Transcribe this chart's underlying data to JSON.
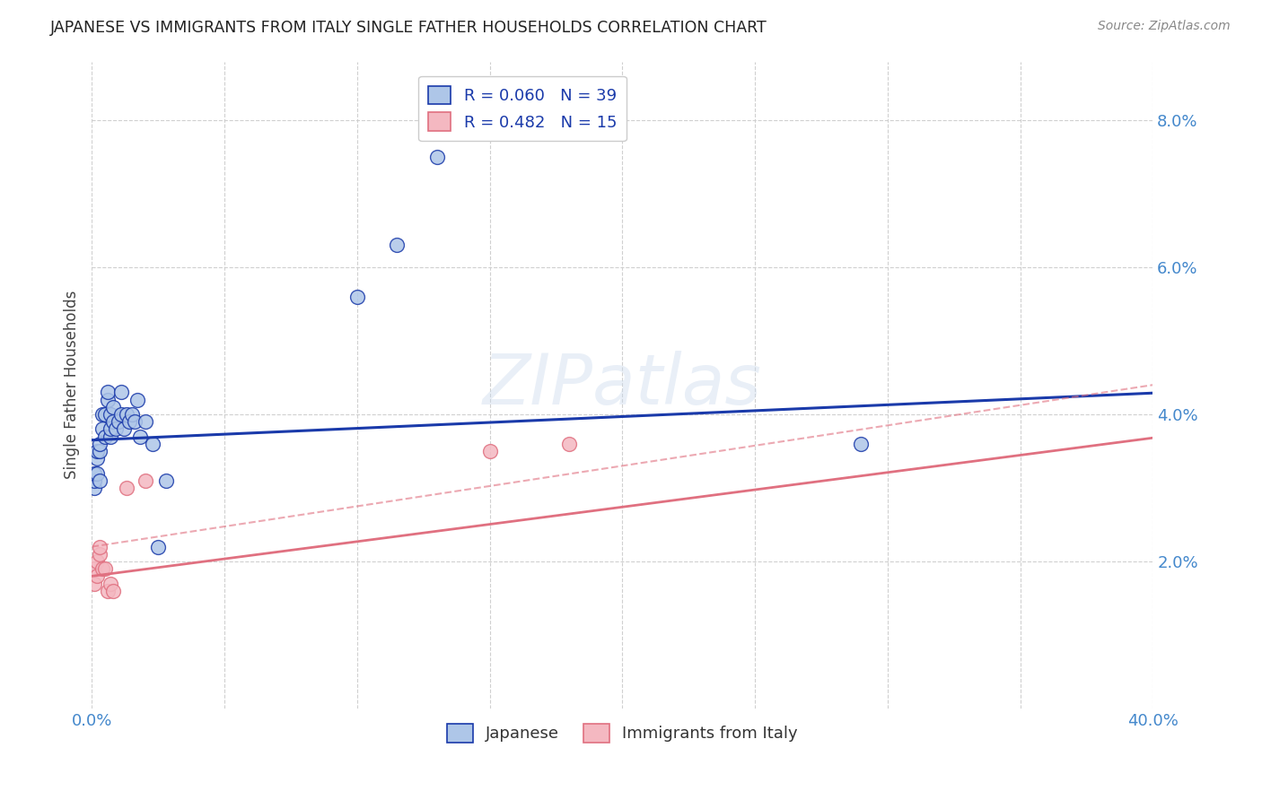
{
  "title": "JAPANESE VS IMMIGRANTS FROM ITALY SINGLE FATHER HOUSEHOLDS CORRELATION CHART",
  "source": "Source: ZipAtlas.com",
  "ylabel": "Single Father Households",
  "xlim": [
    0.0,
    0.4
  ],
  "ylim": [
    0.0,
    0.088
  ],
  "xticks": [
    0.0,
    0.05,
    0.1,
    0.15,
    0.2,
    0.25,
    0.3,
    0.35,
    0.4
  ],
  "yticks": [
    0.02,
    0.04,
    0.06,
    0.08
  ],
  "japanese_color": "#aec6e8",
  "italy_color": "#f4b8c1",
  "japanese_line_color": "#1a3aaa",
  "italy_line_color": "#e07080",
  "watermark": "ZIPatlas",
  "background_color": "#ffffff",
  "grid_color": "#d0d0d0",
  "japanese_x": [
    0.001,
    0.001,
    0.001,
    0.002,
    0.002,
    0.002,
    0.003,
    0.003,
    0.003,
    0.004,
    0.004,
    0.005,
    0.005,
    0.006,
    0.006,
    0.007,
    0.007,
    0.007,
    0.008,
    0.008,
    0.009,
    0.01,
    0.011,
    0.011,
    0.012,
    0.013,
    0.014,
    0.015,
    0.016,
    0.017,
    0.018,
    0.02,
    0.023,
    0.025,
    0.028,
    0.1,
    0.115,
    0.13,
    0.29
  ],
  "japanese_y": [
    0.03,
    0.031,
    0.032,
    0.032,
    0.034,
    0.035,
    0.031,
    0.035,
    0.036,
    0.038,
    0.04,
    0.037,
    0.04,
    0.042,
    0.043,
    0.037,
    0.038,
    0.04,
    0.039,
    0.041,
    0.038,
    0.039,
    0.04,
    0.043,
    0.038,
    0.04,
    0.039,
    0.04,
    0.039,
    0.042,
    0.037,
    0.039,
    0.036,
    0.022,
    0.031,
    0.056,
    0.063,
    0.075,
    0.036
  ],
  "italy_x": [
    0.001,
    0.001,
    0.002,
    0.002,
    0.003,
    0.003,
    0.004,
    0.005,
    0.006,
    0.007,
    0.008,
    0.013,
    0.02,
    0.15,
    0.18
  ],
  "italy_y": [
    0.017,
    0.019,
    0.018,
    0.02,
    0.021,
    0.022,
    0.019,
    0.019,
    0.016,
    0.017,
    0.016,
    0.03,
    0.031,
    0.035,
    0.036
  ],
  "japanese_slope": 0.016,
  "japanese_intercept": 0.0365,
  "italy_slope_solid": 0.047,
  "italy_intercept_solid": 0.018,
  "italy_slope_dash": 0.055,
  "italy_intercept_dash": 0.022
}
